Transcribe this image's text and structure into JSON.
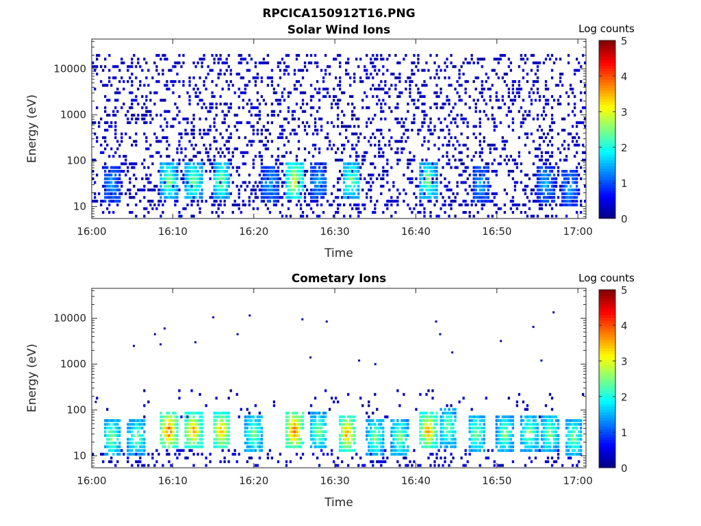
{
  "figure_title": "RPCICA150912T16.PNG",
  "chart_data": [
    {
      "type": "heatmap",
      "title": "Solar Wind Ions",
      "xlabel": "Time",
      "ylabel": "Energy (eV)",
      "x_ticks": [
        "16:00",
        "16:10",
        "16:20",
        "16:30",
        "16:40",
        "16:50",
        "17:00"
      ],
      "x_range_minutes": [
        0,
        61
      ],
      "y_ticks": [
        "10",
        "100",
        "1000",
        "10000"
      ],
      "y_scale": "log",
      "y_range_eV": [
        5.5,
        45000
      ],
      "colorbar": {
        "label": "Log counts",
        "ticks": [
          "0",
          "1",
          "2",
          "3",
          "4",
          "5"
        ],
        "range": [
          0,
          5
        ],
        "colormap": "jet"
      },
      "grid": false,
      "description_points": {
        "background_scatter": {
          "energy_range_eV": [
            10,
            20000
          ],
          "log_counts": 0
        },
        "low_energy_bursts": [
          {
            "time_min": 2.5,
            "energy_eV": 30,
            "log_counts": 1.5
          },
          {
            "time_min": 9.5,
            "energy_eV": 35,
            "log_counts": 2.5
          },
          {
            "time_min": 12.5,
            "energy_eV": 35,
            "log_counts": 2.5
          },
          {
            "time_min": 16,
            "energy_eV": 35,
            "log_counts": 2.5
          },
          {
            "time_min": 22,
            "energy_eV": 30,
            "log_counts": 1.5
          },
          {
            "time_min": 25,
            "energy_eV": 35,
            "log_counts": 3
          },
          {
            "time_min": 28,
            "energy_eV": 35,
            "log_counts": 1.5
          },
          {
            "time_min": 32,
            "energy_eV": 35,
            "log_counts": 2.5
          },
          {
            "time_min": 41.5,
            "energy_eV": 35,
            "log_counts": 2.5
          },
          {
            "time_min": 48,
            "energy_eV": 30,
            "log_counts": 1.5
          },
          {
            "time_min": 56,
            "energy_eV": 30,
            "log_counts": 1.5
          },
          {
            "time_min": 59,
            "energy_eV": 25,
            "log_counts": 1.5
          }
        ]
      }
    },
    {
      "type": "heatmap",
      "title": "Cometary Ions",
      "xlabel": "Time",
      "ylabel": "Energy (eV)",
      "x_ticks": [
        "16:00",
        "16:10",
        "16:20",
        "16:30",
        "16:40",
        "16:50",
        "17:00"
      ],
      "x_range_minutes": [
        0,
        61
      ],
      "y_ticks": [
        "10",
        "100",
        "1000",
        "10000"
      ],
      "y_scale": "log",
      "y_range_eV": [
        5.5,
        45000
      ],
      "colorbar": {
        "label": "Log counts",
        "ticks": [
          "0",
          "1",
          "2",
          "3",
          "4",
          "5"
        ],
        "range": [
          0,
          5
        ],
        "colormap": "jet"
      },
      "grid": false,
      "description_points": {
        "isolated_high_energy_points": [
          {
            "time_min": 0.5,
            "energy_eV": 150
          },
          {
            "time_min": 5.2,
            "energy_eV": 2500
          },
          {
            "time_min": 7.8,
            "energy_eV": 4500
          },
          {
            "time_min": 8.5,
            "energy_eV": 2700
          },
          {
            "time_min": 9.0,
            "energy_eV": 6000
          },
          {
            "time_min": 12.8,
            "energy_eV": 3000
          },
          {
            "time_min": 15.0,
            "energy_eV": 10500
          },
          {
            "time_min": 18.0,
            "energy_eV": 4500
          },
          {
            "time_min": 19.5,
            "energy_eV": 11500
          },
          {
            "time_min": 26.0,
            "energy_eV": 9500
          },
          {
            "time_min": 27.0,
            "energy_eV": 1400
          },
          {
            "time_min": 29.0,
            "energy_eV": 8500
          },
          {
            "time_min": 33.0,
            "energy_eV": 1200
          },
          {
            "time_min": 35.0,
            "energy_eV": 1000
          },
          {
            "time_min": 42.5,
            "energy_eV": 8500
          },
          {
            "time_min": 43.0,
            "energy_eV": 4500
          },
          {
            "time_min": 44.5,
            "energy_eV": 1800
          },
          {
            "time_min": 50.5,
            "energy_eV": 3200
          },
          {
            "time_min": 54.5,
            "energy_eV": 6500
          },
          {
            "time_min": 55.5,
            "energy_eV": 1200
          },
          {
            "time_min": 57.0,
            "energy_eV": 13500
          }
        ],
        "low_energy_bursts": [
          {
            "time_min": 2.5,
            "energy_eV": 25,
            "log_counts": 2.5
          },
          {
            "time_min": 5.5,
            "energy_eV": 25,
            "log_counts": 2.5
          },
          {
            "time_min": 9.5,
            "energy_eV": 35,
            "log_counts": 3.8
          },
          {
            "time_min": 12.5,
            "energy_eV": 35,
            "log_counts": 3.5
          },
          {
            "time_min": 16,
            "energy_eV": 35,
            "log_counts": 3.5
          },
          {
            "time_min": 20,
            "energy_eV": 30,
            "log_counts": 2.5
          },
          {
            "time_min": 25,
            "energy_eV": 35,
            "log_counts": 3.8
          },
          {
            "time_min": 28,
            "energy_eV": 35,
            "log_counts": 2.5
          },
          {
            "time_min": 31.5,
            "energy_eV": 30,
            "log_counts": 3.5
          },
          {
            "time_min": 35,
            "energy_eV": 25,
            "log_counts": 2.5
          },
          {
            "time_min": 38,
            "energy_eV": 25,
            "log_counts": 2.5
          },
          {
            "time_min": 41.5,
            "energy_eV": 35,
            "log_counts": 3.5
          },
          {
            "time_min": 44,
            "energy_eV": 40,
            "log_counts": 2.5
          },
          {
            "time_min": 47.5,
            "energy_eV": 30,
            "log_counts": 2.5
          },
          {
            "time_min": 51,
            "energy_eV": 30,
            "log_counts": 2.5
          },
          {
            "time_min": 54,
            "energy_eV": 30,
            "log_counts": 2.5
          },
          {
            "time_min": 56.5,
            "energy_eV": 30,
            "log_counts": 2.5
          },
          {
            "time_min": 59.5,
            "energy_eV": 25,
            "log_counts": 2.5
          }
        ]
      }
    }
  ]
}
